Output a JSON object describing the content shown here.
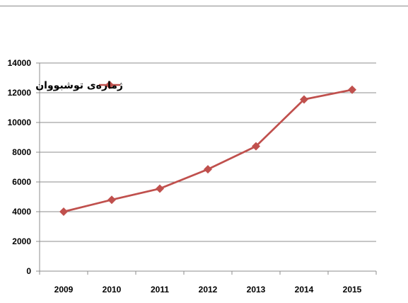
{
  "chart_data": {
    "type": "line",
    "categories": [
      "2009",
      "2010",
      "2011",
      "2012",
      "2013",
      "2014",
      "2015"
    ],
    "series": [
      {
        "name": "ژمارەی توشبووان",
        "values": [
          4000,
          4800,
          5550,
          6850,
          8400,
          11550,
          12200
        ],
        "color": "#C0504D"
      }
    ],
    "ylim": [
      0,
      14000
    ],
    "yticks": [
      "0",
      "2000",
      "4000",
      "6000",
      "8000",
      "10000",
      "12000",
      "14000"
    ],
    "grid": true,
    "legend": "top-left"
  }
}
